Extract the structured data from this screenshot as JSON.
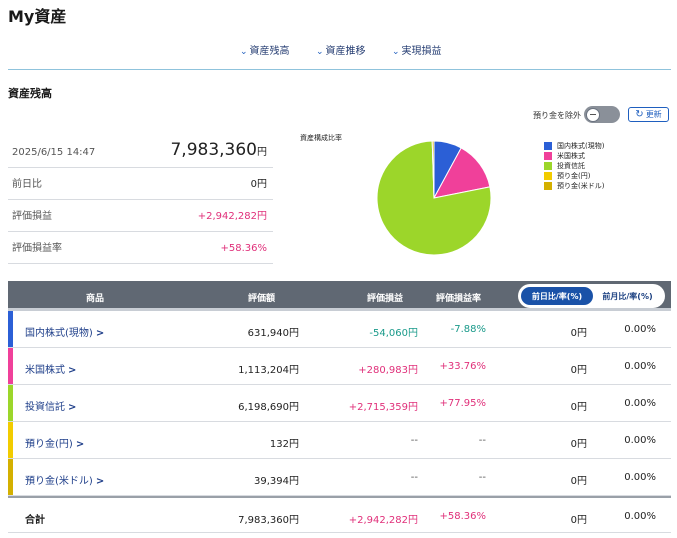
{
  "page_title": "My資産",
  "subnav": [
    {
      "label": "資産残高"
    },
    {
      "label": "資産推移"
    },
    {
      "label": "実現損益"
    }
  ],
  "section_title": "資産残高",
  "toggle_label": "預り金を除外",
  "refresh_label": "更新",
  "summary": {
    "datetime": "2025/6/15 14:47",
    "total_value": "7,983,360",
    "total_unit": "円",
    "rows": [
      {
        "label": "前日比",
        "value": "0円"
      },
      {
        "label": "評価損益",
        "value": "+2,942,282円"
      },
      {
        "label": "評価損益率",
        "value": "+58.36%"
      }
    ]
  },
  "chart_data": {
    "type": "pie",
    "title": "資産構成比率",
    "categories": [
      "国内株式(現物)",
      "米国株式",
      "投資信託",
      "預り金(円)",
      "預り金(米ドル)"
    ],
    "values": [
      631940,
      1113204,
      6198690,
      132,
      39394
    ],
    "colors": [
      "#2b5fd6",
      "#f0409a",
      "#9cd62a",
      "#f2cc00",
      "#d4b000"
    ],
    "legend": "right"
  },
  "table": {
    "headers": {
      "product": "商品",
      "value": "評価額",
      "pl": "評価損益",
      "pl_rate": "評価損益率"
    },
    "toggle": {
      "active": "前日比/率(%)",
      "inactive": "前月比/率(%)"
    },
    "rows": [
      {
        "name": "国内株式(現物)",
        "value": "631,940円",
        "pl": "-54,060円",
        "pl_rate": "-7.88%",
        "diff": "0円",
        "diff_rate": "0.00%",
        "color": "#2b5fd6",
        "trend": "neg"
      },
      {
        "name": "米国株式",
        "value": "1,113,204円",
        "pl": "+280,983円",
        "pl_rate": "+33.76%",
        "diff": "0円",
        "diff_rate": "0.00%",
        "color": "#f0409a",
        "trend": "pos"
      },
      {
        "name": "投資信託",
        "value": "6,198,690円",
        "pl": "+2,715,359円",
        "pl_rate": "+77.95%",
        "diff": "0円",
        "diff_rate": "0.00%",
        "color": "#9cd62a",
        "trend": "pos"
      },
      {
        "name": "預り金(円)",
        "value": "132円",
        "pl": "--",
        "pl_rate": "--",
        "diff": "0円",
        "diff_rate": "0.00%",
        "color": "#f2cc00",
        "trend": "none"
      },
      {
        "name": "預り金(米ドル)",
        "value": "39,394円",
        "pl": "--",
        "pl_rate": "--",
        "diff": "0円",
        "diff_rate": "0.00%",
        "color": "#d4b000",
        "trend": "none"
      }
    ],
    "total": {
      "name": "合計",
      "value": "7,983,360円",
      "pl": "+2,942,282円",
      "pl_rate": "+58.36%",
      "diff": "0円",
      "diff_rate": "0.00%"
    }
  },
  "icons": {
    "chevron": "chevron-down-icon",
    "row_arrow": "chevron-right-icon",
    "refresh": "refresh-icon"
  }
}
